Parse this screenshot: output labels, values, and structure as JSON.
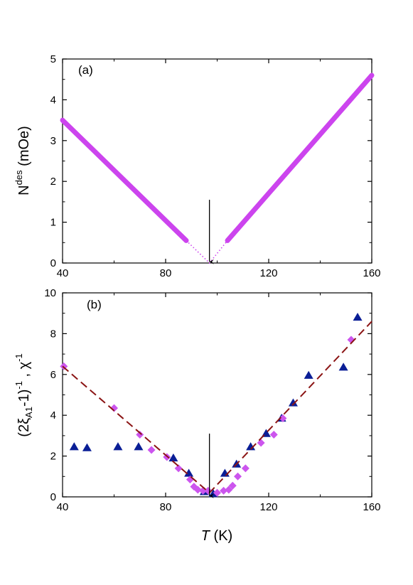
{
  "chart_data": [
    {
      "type": "line",
      "panel_label": "(a)",
      "ylabel_main": "N",
      "ylabel_sup": "des",
      "ylabel_rest": " (mOe)",
      "xlim": [
        40,
        160
      ],
      "ylim": [
        0,
        5
      ],
      "x_ticks": [
        "40",
        "80",
        "120",
        "160"
      ],
      "y_ticks": [
        "0",
        "1",
        "2",
        "3",
        "4",
        "5"
      ],
      "series": [
        {
          "type": "line",
          "style": "solid-thick",
          "color": "#cc44ee",
          "x": [
            40,
            88
          ],
          "y": [
            3.5,
            0.55
          ]
        },
        {
          "type": "line",
          "style": "solid-thick",
          "color": "#cc44ee",
          "x": [
            104,
            160
          ],
          "y": [
            0.55,
            4.6
          ]
        },
        {
          "type": "line",
          "style": "dotted",
          "color": "#cc44ee",
          "x": [
            88,
            97,
            104
          ],
          "y": [
            0.55,
            0,
            0.55
          ]
        }
      ],
      "annotation": {
        "type": "arrow",
        "x": 97,
        "y_from": 1.55,
        "y_to": 0.03
      }
    },
    {
      "type": "scatter",
      "panel_label": "(b)",
      "ylabel_pre": "(2ξ",
      "ylabel_sub": "A1",
      "ylabel_mid": "-1)",
      "ylabel_sup1": "-1",
      "ylabel_comma": " , χ",
      "ylabel_sup2": "-1",
      "xlabel_italic": "T",
      "xlabel_rest": " (K)",
      "xlim": [
        40,
        160
      ],
      "ylim": [
        0,
        10
      ],
      "x_ticks": [
        "40",
        "80",
        "120",
        "160"
      ],
      "y_ticks": [
        "0",
        "2",
        "4",
        "6",
        "8",
        "10"
      ],
      "series": [
        {
          "type": "scatter",
          "marker": "triangle",
          "color": "#0a1e96",
          "x": [
            44.5,
            49.5,
            61.5,
            69.5,
            83,
            89,
            95,
            98.5,
            103,
            107.5,
            113,
            119,
            125,
            129.5,
            135.5,
            149,
            154.5
          ],
          "y": [
            2.45,
            2.4,
            2.45,
            2.45,
            1.9,
            1.15,
            0.25,
            0.15,
            1.15,
            1.6,
            2.45,
            3.1,
            3.85,
            4.6,
            5.95,
            6.35,
            8.8
          ]
        },
        {
          "type": "scatter",
          "marker": "diamond",
          "color": "#cc55ee",
          "x": [
            40.5,
            60,
            70,
            74.5,
            80.5,
            85,
            89.5,
            91,
            92.5,
            94.5,
            96.5,
            100,
            102.5,
            104.5,
            106,
            108,
            111,
            117,
            122,
            125.5,
            152
          ],
          "y": [
            6.4,
            4.35,
            3.05,
            2.3,
            1.95,
            1.4,
            0.85,
            0.5,
            0.35,
            0.3,
            0.3,
            0.2,
            0.3,
            0.35,
            0.55,
            1.0,
            1.4,
            2.65,
            3.05,
            3.85,
            7.7
          ]
        },
        {
          "type": "line",
          "style": "dashed",
          "color": "#8b1414",
          "x": [
            40,
            97,
            160
          ],
          "y": [
            6.4,
            0.2,
            8.6
          ]
        }
      ],
      "annotation": {
        "type": "arrow",
        "x": 97,
        "y_from": 3.1,
        "y_to": 0.05
      }
    }
  ]
}
